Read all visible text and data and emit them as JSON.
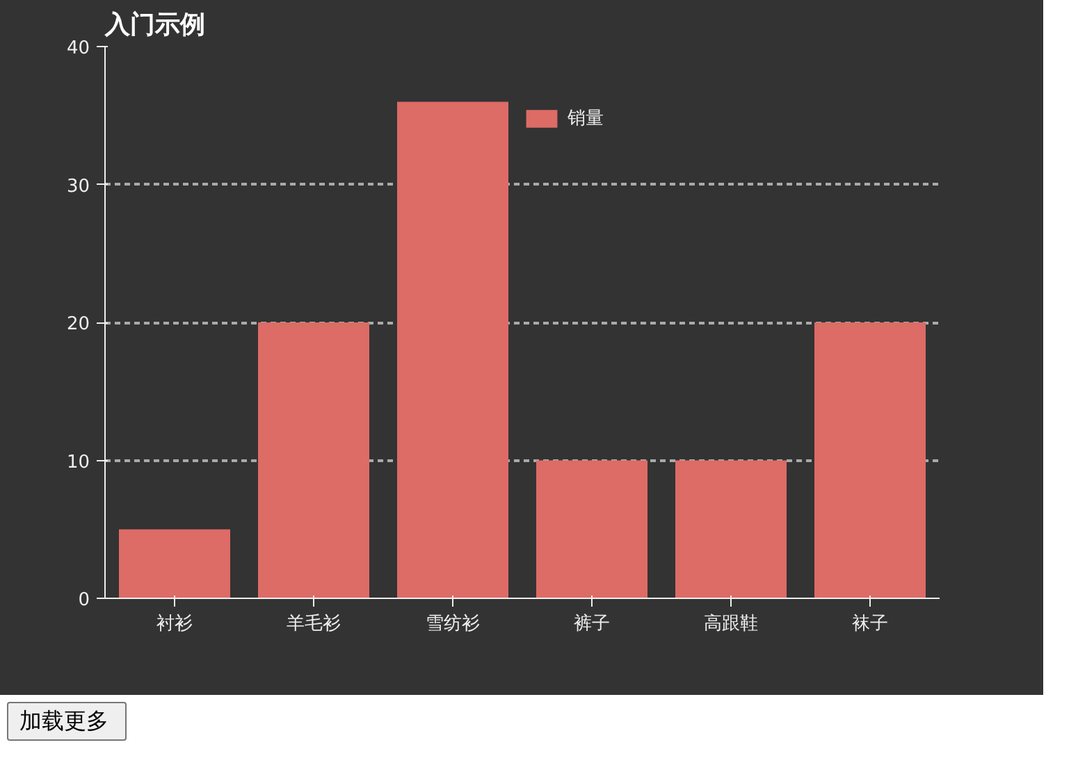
{
  "chart_data": {
    "type": "bar",
    "title": "入门示例",
    "categories": [
      "衬衫",
      "羊毛衫",
      "雪纺衫",
      "裤子",
      "高跟鞋",
      "袜子"
    ],
    "series": [
      {
        "name": "销量",
        "color": "#dd6b66",
        "values": [
          5,
          20,
          36,
          10,
          10,
          20
        ]
      }
    ],
    "ylim": [
      0,
      40
    ],
    "yticks": [
      0,
      10,
      20,
      30,
      40
    ],
    "grid": "y",
    "legend": "top",
    "annotations": [
      "加载更多"
    ]
  }
}
